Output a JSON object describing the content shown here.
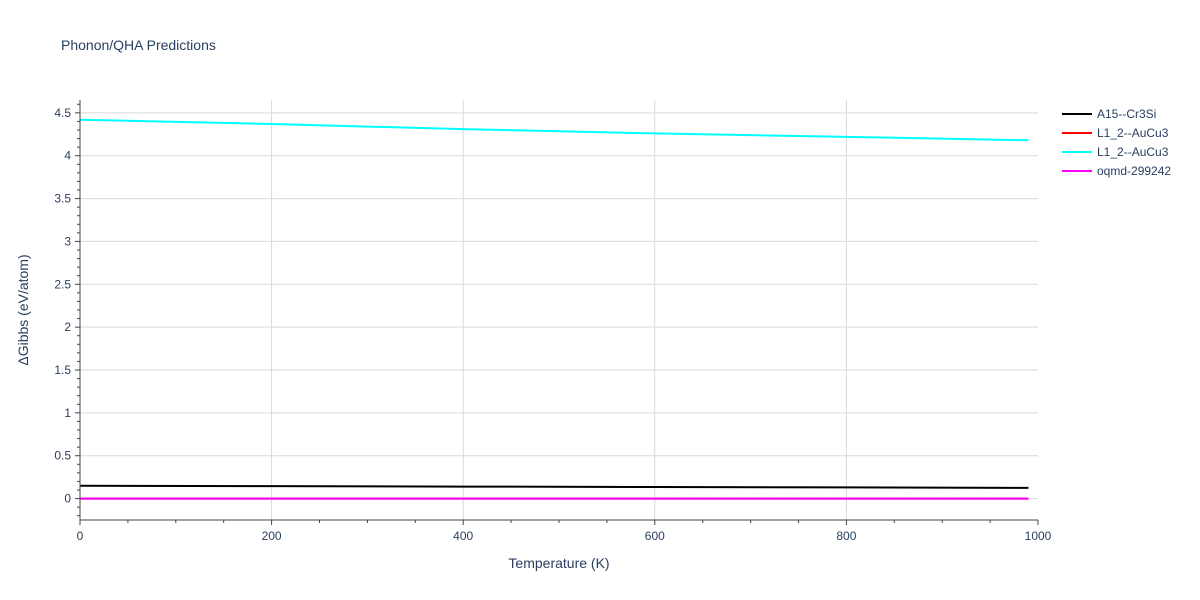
{
  "chart_data": {
    "type": "line",
    "title": "Phonon/QHA Predictions",
    "xlabel": "Temperature (K)",
    "ylabel": "ΔGibbs (eV/atom)",
    "xlim": [
      0,
      1000
    ],
    "ylim": [
      -0.25,
      4.65
    ],
    "xticks": [
      0,
      200,
      400,
      600,
      800,
      1000
    ],
    "xtick_labels": [
      "0",
      "200",
      "400",
      "600",
      "800",
      "1000"
    ],
    "yticks": [
      0,
      0.5,
      1,
      1.5,
      2,
      2.5,
      3,
      3.5,
      4,
      4.5
    ],
    "ytick_labels": [
      "0",
      "0.5",
      "1",
      "1.5",
      "2",
      "2.5",
      "3",
      "3.5",
      "4",
      "4.5"
    ],
    "grid": true,
    "legend_position": "top-right",
    "series": [
      {
        "name": "A15--Cr3Si",
        "color": "#000000",
        "x": [
          0,
          200,
          400,
          600,
          800,
          990
        ],
        "y": [
          0.15,
          0.145,
          0.14,
          0.135,
          0.13,
          0.125
        ]
      },
      {
        "name": "L1_2--AuCu3",
        "color": "#ff0000",
        "x": [
          0,
          200,
          400,
          600,
          800,
          990
        ],
        "y": [
          0,
          0,
          0,
          0,
          0,
          0
        ]
      },
      {
        "name": "L1_2--AuCu3",
        "color": "#00ffff",
        "x": [
          0,
          200,
          400,
          600,
          800,
          990
        ],
        "y": [
          4.42,
          4.37,
          4.31,
          4.26,
          4.22,
          4.18
        ]
      },
      {
        "name": "oqmd-299242",
        "color": "#ff00ff",
        "x": [
          0,
          200,
          400,
          600,
          800,
          990
        ],
        "y": [
          0,
          0,
          0,
          0,
          0,
          0
        ]
      }
    ]
  }
}
